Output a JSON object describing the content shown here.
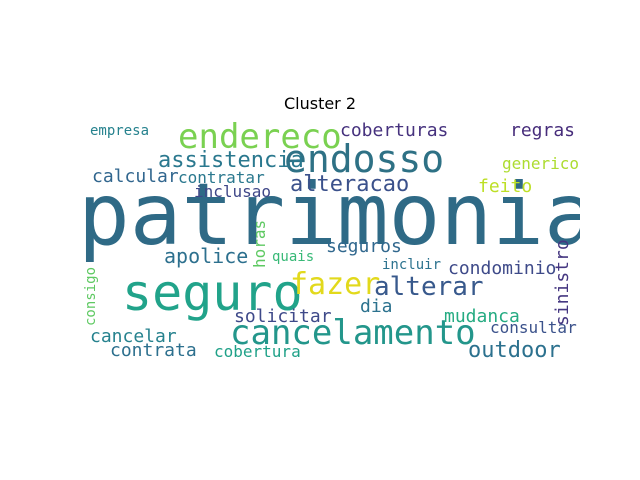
{
  "title": "Cluster 2",
  "words": [
    {
      "text": "patrimonial",
      "color": "#2f6a86"
    },
    {
      "text": "seguro",
      "color": "#21a38a"
    },
    {
      "text": "cancelamento",
      "color": "#23968b"
    },
    {
      "text": "endosso",
      "color": "#2e7185"
    },
    {
      "text": "endereco",
      "color": "#7ad151"
    },
    {
      "text": "assistencia",
      "color": "#2a788e"
    },
    {
      "text": "fazer",
      "color": "#e2d91c"
    },
    {
      "text": "alteracao",
      "color": "#3b518b"
    },
    {
      "text": "alterar",
      "color": "#38598c"
    },
    {
      "text": "coberturas",
      "color": "#46327e"
    },
    {
      "text": "condominio",
      "color": "#3e4a89"
    },
    {
      "text": "outdoor",
      "color": "#2c718e"
    },
    {
      "text": "apolice",
      "color": "#2d708e"
    },
    {
      "text": "seguros",
      "color": "#31688e"
    },
    {
      "text": "calcular",
      "color": "#31668e"
    },
    {
      "text": "contratar",
      "color": "#2a788e"
    },
    {
      "text": "inclusao",
      "color": "#3f4788"
    },
    {
      "text": "regras",
      "color": "#472d7b"
    },
    {
      "text": "feito",
      "color": "#bddf26"
    },
    {
      "text": "generico",
      "color": "#addc30"
    },
    {
      "text": "empresa",
      "color": "#26828e"
    },
    {
      "text": "cancelar",
      "color": "#26828e"
    },
    {
      "text": "contrata",
      "color": "#2d708e"
    },
    {
      "text": "cobertura",
      "color": "#1fa188"
    },
    {
      "text": "solicitar",
      "color": "#3e4989"
    },
    {
      "text": "mudanca",
      "color": "#25ab82"
    },
    {
      "text": "consultar",
      "color": "#3b528b"
    },
    {
      "text": "incluir",
      "color": "#2c728e"
    },
    {
      "text": "horas",
      "color": "#5ec962"
    },
    {
      "text": "sinistro",
      "color": "#453781"
    },
    {
      "text": "dia",
      "color": "#2c728e"
    },
    {
      "text": "quais",
      "color": "#38b977"
    },
    {
      "text": "consigo",
      "color": "#5ec962"
    }
  ]
}
